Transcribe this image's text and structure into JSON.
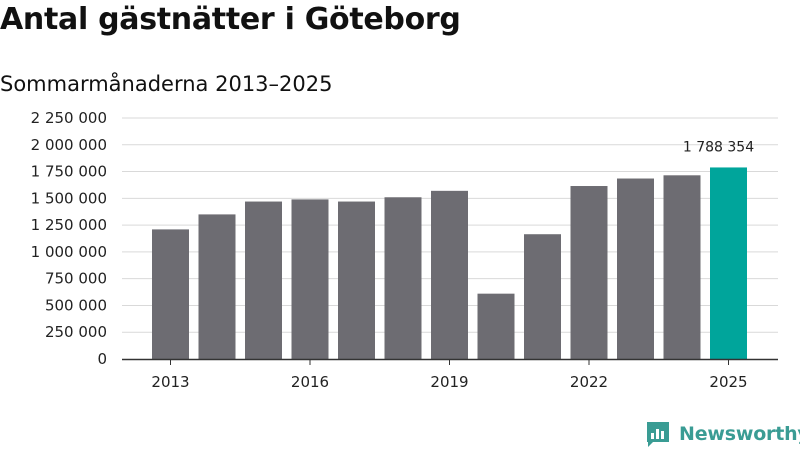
{
  "header": {
    "title": "Antal gästnätter i Göteborg",
    "subtitle": "Sommarmånaderna 2013–2025"
  },
  "chart_data": {
    "type": "bar",
    "categories": [
      "2013",
      "2014",
      "2015",
      "2016",
      "2017",
      "2018",
      "2019",
      "2020",
      "2021",
      "2022",
      "2023",
      "2024",
      "2025"
    ],
    "values": [
      1210000,
      1350000,
      1470000,
      1490000,
      1470000,
      1510000,
      1570000,
      610000,
      1165000,
      1615000,
      1685000,
      1715000,
      1788354
    ],
    "x_tick_labels": [
      "2013",
      "2016",
      "2019",
      "2022",
      "2025"
    ],
    "y_tick_labels": [
      "0",
      "250 000",
      "500 000",
      "750 000",
      "1 000 000",
      "1 250 000",
      "1 500 000",
      "1 750 000",
      "2 000 000",
      "2 250 000"
    ],
    "ylim": [
      0,
      2250000
    ],
    "ytick_step": 250000,
    "grid": true,
    "highlight": {
      "index": 12,
      "label": "1 788 354"
    },
    "colors": {
      "bar": "#6d6c72",
      "highlight": "#00a59b",
      "grid": "#d9d9d9",
      "axis": "#333333"
    }
  },
  "brand": {
    "name": "Newsworthy",
    "color": "#3a9c94",
    "icon": "newsworthy-logo-icon"
  }
}
